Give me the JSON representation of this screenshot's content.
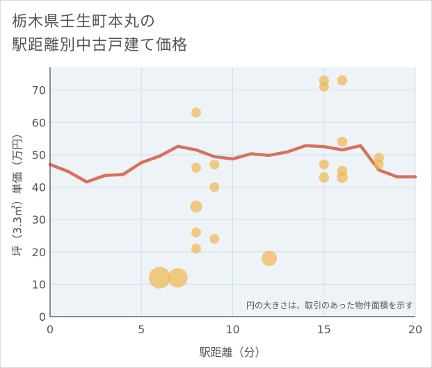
{
  "title_lines": [
    "栃木県壬生町本丸の",
    "駅距離別中古戸建て価格"
  ],
  "chart_data": {
    "type": "scatter",
    "xlabel": "駅距離（分）",
    "ylabel": "坪（3.3㎡）単価（万円）",
    "xlim": [
      0,
      20
    ],
    "ylim": [
      0,
      77
    ],
    "xticks": [
      0,
      5,
      10,
      15,
      20
    ],
    "yticks": [
      0,
      10,
      20,
      30,
      40,
      50,
      60,
      70
    ],
    "note": "円の大きさは、取引のあった物件面積を示す",
    "colors": {
      "points": "#f0b755",
      "line": "#d9705d",
      "grid": "#cfe0ea",
      "plot_bg": "#eef3f7"
    },
    "scatter": [
      {
        "x": 6,
        "y": 12,
        "size": 5
      },
      {
        "x": 7,
        "y": 12,
        "size": 4
      },
      {
        "x": 8,
        "y": 63,
        "size": 1
      },
      {
        "x": 8,
        "y": 46,
        "size": 1
      },
      {
        "x": 8,
        "y": 34,
        "size": 1.5
      },
      {
        "x": 8,
        "y": 26,
        "size": 1
      },
      {
        "x": 8,
        "y": 21,
        "size": 1
      },
      {
        "x": 9,
        "y": 47,
        "size": 1
      },
      {
        "x": 9,
        "y": 40,
        "size": 1
      },
      {
        "x": 9,
        "y": 24,
        "size": 1
      },
      {
        "x": 12,
        "y": 18,
        "size": 2.5
      },
      {
        "x": 15,
        "y": 73,
        "size": 1
      },
      {
        "x": 15,
        "y": 71,
        "size": 1
      },
      {
        "x": 15,
        "y": 47,
        "size": 1
      },
      {
        "x": 15,
        "y": 43,
        "size": 1.1
      },
      {
        "x": 16,
        "y": 73,
        "size": 1.1
      },
      {
        "x": 16,
        "y": 54,
        "size": 1.1
      },
      {
        "x": 16,
        "y": 45,
        "size": 1.1
      },
      {
        "x": 16,
        "y": 43,
        "size": 1.3
      },
      {
        "x": 18,
        "y": 49,
        "size": 1.1
      },
      {
        "x": 18,
        "y": 47,
        "size": 1
      }
    ],
    "line": {
      "x": [
        0,
        1,
        2,
        3,
        4,
        5,
        6,
        7,
        8,
        9,
        10,
        11,
        12,
        13,
        14,
        15,
        16,
        17,
        18,
        19,
        20
      ],
      "y": [
        47,
        44.8,
        41.6,
        43.6,
        43.9,
        47.6,
        49.6,
        52.6,
        51.5,
        49.4,
        48.7,
        50.3,
        49.8,
        50.9,
        52.8,
        52.5,
        51.5,
        52.8,
        45.3,
        43.2,
        43.2
      ]
    }
  }
}
